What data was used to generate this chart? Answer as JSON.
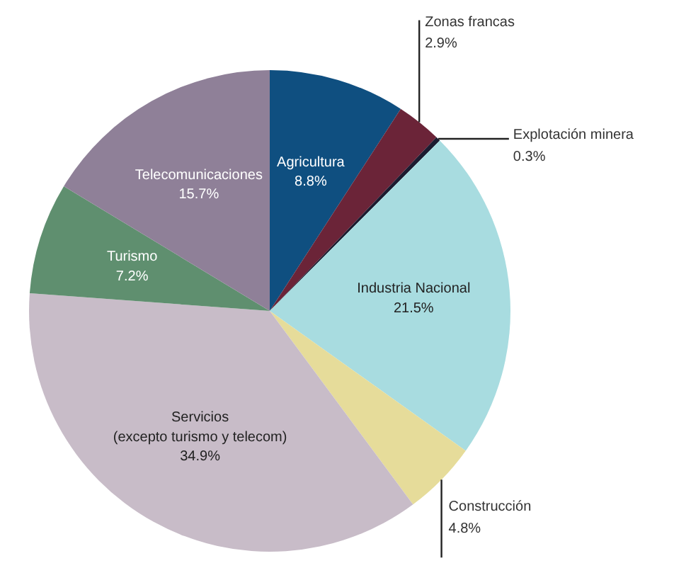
{
  "chart_data": {
    "type": "pie",
    "value_labels": [
      "8.8%",
      "2.9%",
      "0.3%",
      "21.5%",
      "4.8%",
      "34.9%",
      "7.2%",
      "15.7%"
    ],
    "categories": [
      "Agricultura",
      "Zonas francas",
      "Explotación minera",
      "Industria Nacional",
      "Construcción",
      "Servicios\n(excepto turismo y telecom)",
      "Turismo",
      "Telecomunicaciones"
    ],
    "values": [
      8.8,
      2.9,
      0.3,
      21.5,
      4.8,
      34.9,
      7.2,
      15.7
    ],
    "colors": [
      "#0f4f80",
      "#6b2438",
      "#1c1c30",
      "#a8dce0",
      "#e6dc9a",
      "#c8bcc8",
      "#5f8f6f",
      "#8f8098"
    ]
  }
}
